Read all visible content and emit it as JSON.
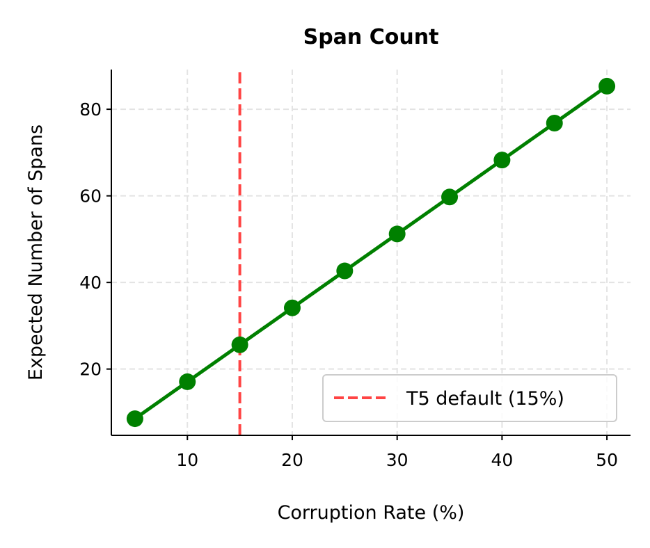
{
  "chart_data": {
    "type": "line",
    "title": "Span Count",
    "xlabel": "Corruption Rate (%)",
    "ylabel": "Expected Number of Spans",
    "x": [
      5,
      10,
      15,
      20,
      25,
      30,
      35,
      40,
      45,
      50
    ],
    "series": [
      {
        "values": [
          8.53,
          17.07,
          25.6,
          34.13,
          42.67,
          51.2,
          59.73,
          68.27,
          76.8,
          85.33
        ],
        "color": "#008000",
        "marker": "circle"
      }
    ],
    "reference_line": {
      "axis": "x",
      "value": 15,
      "label": "T5 default (15%)",
      "color": "#ff4444",
      "style": "dashed"
    },
    "xlim": [
      2.75,
      52.25
    ],
    "ylim": [
      4.69,
      89.17
    ],
    "xticks": [
      10,
      20,
      30,
      40,
      50
    ],
    "yticks": [
      20,
      40,
      60,
      80
    ],
    "grid": true,
    "legend_position": "bottom-right"
  }
}
